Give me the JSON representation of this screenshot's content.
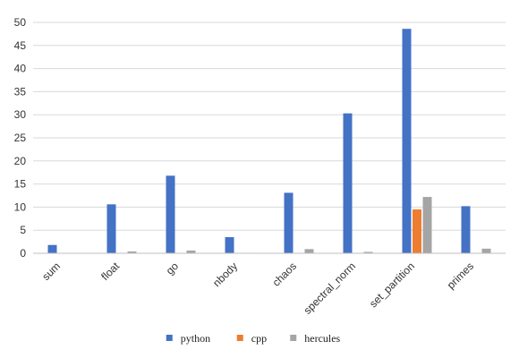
{
  "chart_data": {
    "type": "bar",
    "title": "",
    "xlabel": "",
    "ylabel": "",
    "categories": [
      "sum",
      "float",
      "go",
      "nbody",
      "chaos",
      "spectral_norm",
      "set_partition",
      "primes"
    ],
    "series": [
      {
        "name": "python",
        "color": "#4472C4",
        "values": [
          1.8,
          10.6,
          16.8,
          3.5,
          13.1,
          30.3,
          48.6,
          10.2
        ]
      },
      {
        "name": "cpp",
        "color": "#ED7D31",
        "values": [
          0.0,
          0.0,
          0.0,
          0.1,
          0.0,
          0.0,
          9.5,
          0.0
        ]
      },
      {
        "name": "hercules",
        "color": "#A5A5A5",
        "values": [
          0.0,
          0.4,
          0.6,
          0.1,
          0.9,
          0.3,
          12.2,
          1.0
        ]
      }
    ],
    "ylim": [
      0,
      50
    ],
    "yticks": [
      0,
      5,
      10,
      15,
      20,
      25,
      30,
      35,
      40,
      45,
      50
    ],
    "grid": true,
    "legend": "bottom"
  }
}
